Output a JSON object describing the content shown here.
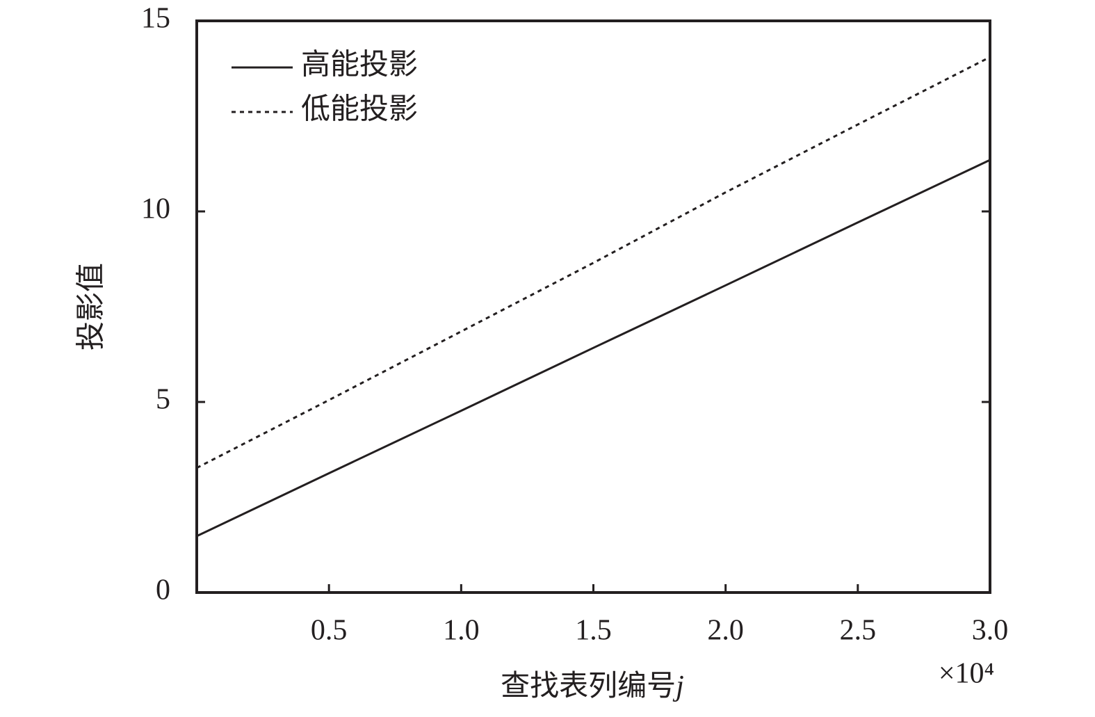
{
  "chart_data": {
    "type": "line",
    "xlabel": "查找表列编号",
    "xlabel_symbol": "j",
    "ylabel": "投影值",
    "x_multiplier": "×10⁴",
    "x": [
      0,
      0.5,
      1.0,
      1.5,
      2.0,
      2.5,
      3.0
    ],
    "series": [
      {
        "name": "高能投影",
        "color": "#231f20",
        "dash": "solid",
        "values": [
          1.48,
          3.13,
          4.77,
          6.42,
          8.06,
          9.71,
          11.35
        ]
      },
      {
        "name": "低能投影",
        "color": "#231f20",
        "dash": "dotted",
        "values": [
          3.27,
          5.05,
          6.85,
          8.65,
          10.5,
          12.28,
          14.05
        ]
      }
    ],
    "xlim": [
      0,
      3.0
    ],
    "xticks": [
      {
        "value": 0.5,
        "label": "0.5"
      },
      {
        "value": 1.0,
        "label": "1.0"
      },
      {
        "value": 1.5,
        "label": "1.5"
      },
      {
        "value": 2.0,
        "label": "2.0"
      },
      {
        "value": 2.5,
        "label": "2.5"
      },
      {
        "value": 3.0,
        "label": "3.0"
      }
    ],
    "ylim": [
      0,
      15
    ],
    "yticks": [
      0,
      5,
      10,
      15
    ],
    "grid": false,
    "legend": "upper left"
  }
}
